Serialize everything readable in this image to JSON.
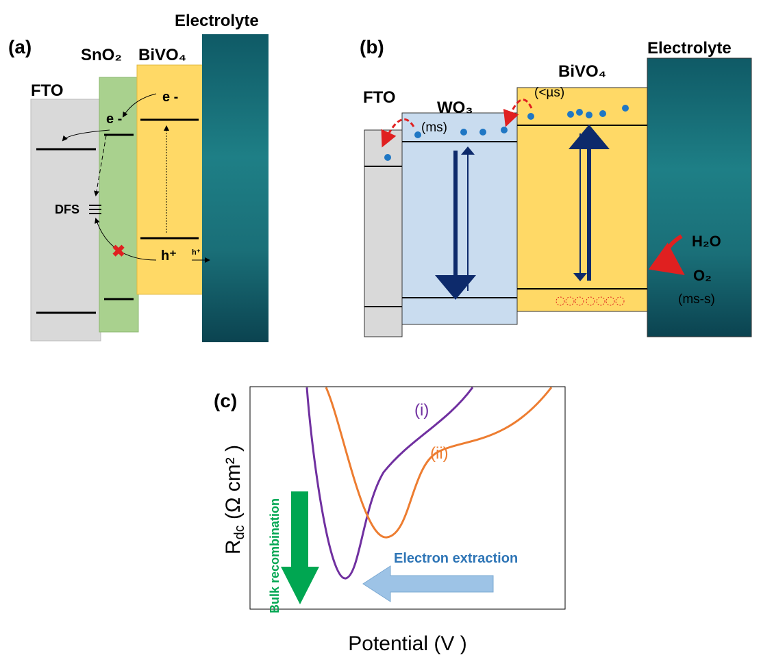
{
  "panel_a": {
    "label": "(a)",
    "layers": [
      "FTO",
      "SnO₂",
      "BiVO₄",
      "Electrolyte"
    ],
    "annotations": {
      "e_bivo4": "e -",
      "e_sno2": "e -",
      "dfs": "DFS",
      "hole": "h⁺",
      "hole_transfer": "h⁺"
    }
  },
  "panel_b": {
    "label": "(b)",
    "layers": [
      "FTO",
      "WO₃",
      "BiVO₄",
      "Electrolyte"
    ],
    "annotations": {
      "ms": "(ms)",
      "us": "(<µs)",
      "h2o": "H₂O",
      "o2": "O₂",
      "ms_s": "(ms-s)"
    }
  },
  "panel_c": {
    "label": "(c)",
    "y_axis": {
      "main": "R",
      "sub": "dc",
      "rest": " (Ω cm² )"
    },
    "x_axis": "Potential (V )",
    "curves": [
      "(i)",
      "(ii)"
    ],
    "arrows": {
      "bulk": "Bulk recombination",
      "extraction": "Electron extraction"
    }
  }
}
